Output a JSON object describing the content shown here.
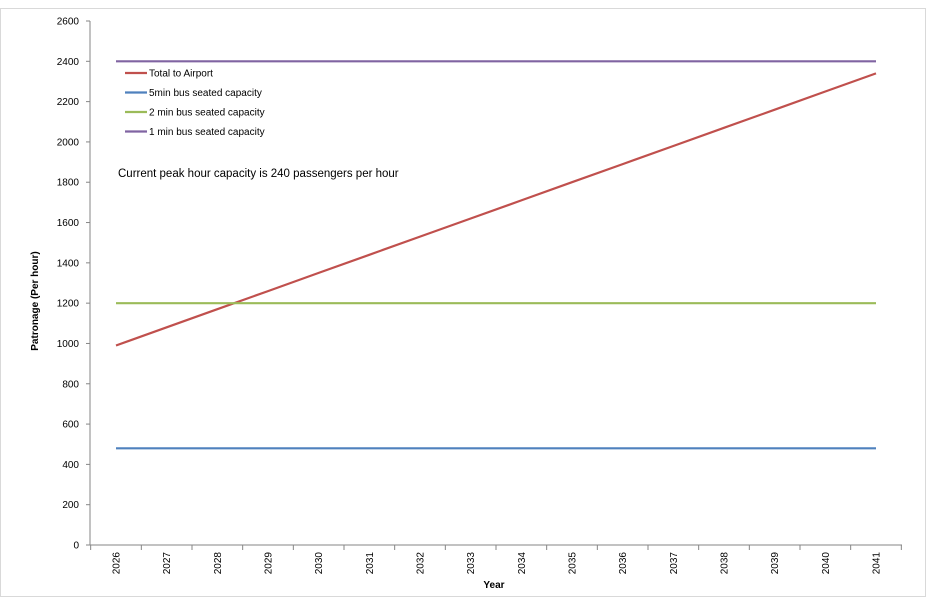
{
  "chart_data": {
    "type": "line",
    "title": "",
    "xlabel": "Year",
    "ylabel": "Patronage (Per hour)",
    "categories": [
      "2026",
      "2027",
      "2028",
      "2029",
      "2030",
      "2031",
      "2032",
      "2033",
      "2034",
      "2035",
      "2036",
      "2037",
      "2038",
      "2039",
      "2040",
      "2041"
    ],
    "ylim": [
      0,
      2600
    ],
    "yticks": [
      0,
      200,
      400,
      600,
      800,
      1000,
      1200,
      1400,
      1600,
      1800,
      2000,
      2200,
      2400,
      2600
    ],
    "grid": false,
    "legend_position": "top-left",
    "annotation": "Current peak hour capacity is 240 passengers per hour",
    "series": [
      {
        "name": "Total to Airport",
        "color": "#c0504d",
        "values": [
          990,
          1080,
          1170,
          1260,
          1350,
          1440,
          1530,
          1620,
          1710,
          1800,
          1890,
          1980,
          2070,
          2160,
          2250,
          2340
        ]
      },
      {
        "name": "5min bus seated capacity",
        "color": "#4f81bd",
        "values": [
          480,
          480,
          480,
          480,
          480,
          480,
          480,
          480,
          480,
          480,
          480,
          480,
          480,
          480,
          480,
          480
        ]
      },
      {
        "name": "2 min bus seated capacity",
        "color": "#9bbb59",
        "values": [
          1200,
          1200,
          1200,
          1200,
          1200,
          1200,
          1200,
          1200,
          1200,
          1200,
          1200,
          1200,
          1200,
          1200,
          1200,
          1200
        ]
      },
      {
        "name": "1 min bus seated capacity",
        "color": "#8064a2",
        "values": [
          2400,
          2400,
          2400,
          2400,
          2400,
          2400,
          2400,
          2400,
          2400,
          2400,
          2400,
          2400,
          2400,
          2400,
          2400,
          2400
        ]
      }
    ]
  }
}
